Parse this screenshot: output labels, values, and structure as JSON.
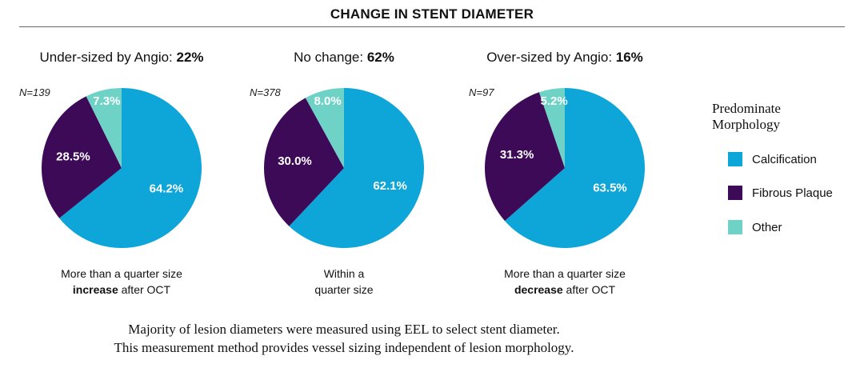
{
  "title": "CHANGE IN STENT DIAMETER",
  "colors": {
    "calcification": "#0ea5d8",
    "fibrous": "#3d0a58",
    "other": "#6fd2c7"
  },
  "legend": {
    "title_line1": "Predominate",
    "title_line2": "Morphology",
    "items": [
      "Calcification",
      "Fibrous Plaque",
      "Other"
    ]
  },
  "footer": {
    "line1": "Majority of lesion diameters were measured using EEL to select stent diameter.",
    "line2": "This measurement method provides vessel sizing independent of lesion morphology."
  },
  "chart_data": [
    {
      "type": "pie",
      "title_prefix": "Under-sized by Angio: ",
      "title_value": "22%",
      "n_label": "N=139",
      "labels": [
        "Calcification",
        "Fibrous Plaque",
        "Other"
      ],
      "values": [
        64.2,
        28.5,
        7.3
      ],
      "value_labels": [
        "64.2%",
        "28.5%",
        "7.3%"
      ],
      "caption_line1": "More than a quarter size",
      "caption_bold": "increase",
      "caption_rest": " after OCT"
    },
    {
      "type": "pie",
      "title_prefix": "No change: ",
      "title_value": "62%",
      "n_label": "N=378",
      "labels": [
        "Calcification",
        "Fibrous Plaque",
        "Other"
      ],
      "values": [
        62.1,
        30.0,
        8.0
      ],
      "value_labels": [
        "62.1%",
        "30.0%",
        "8.0%"
      ],
      "caption_line1": "Within a",
      "caption_bold": "",
      "caption_rest": "quarter size"
    },
    {
      "type": "pie",
      "title_prefix": "Over-sized by Angio: ",
      "title_value": "16%",
      "n_label": "N=97",
      "labels": [
        "Calcification",
        "Fibrous Plaque",
        "Other"
      ],
      "values": [
        63.5,
        31.3,
        5.2
      ],
      "value_labels": [
        "63.5%",
        "31.3%",
        "5.2%"
      ],
      "caption_line1": "More than a quarter size",
      "caption_bold": "decrease",
      "caption_rest": " after OCT"
    }
  ]
}
